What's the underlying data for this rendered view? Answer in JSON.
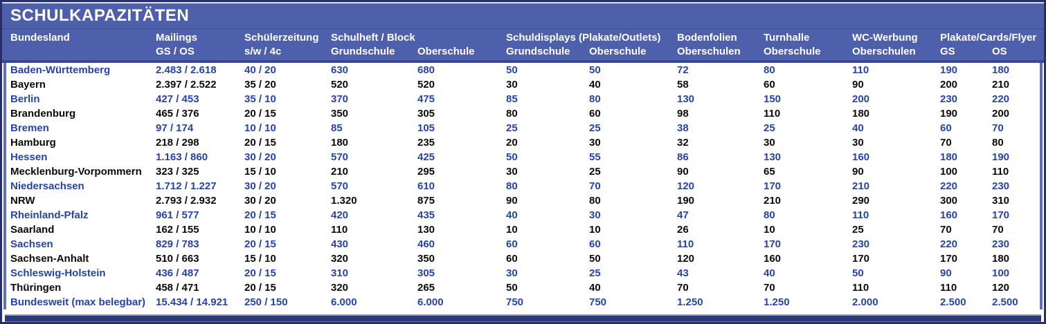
{
  "title": "SCHULKAPAZITÄTEN",
  "colors": {
    "header_background": "#4e60ab",
    "frame_border": "#272f6a",
    "body_side_border": "#6170b3",
    "blue_row_text": "#2444a8",
    "black_row_text": "#0a0a0a",
    "title_text": "#ffffff",
    "bottom_bar": "#2d3878"
  },
  "table": {
    "header": {
      "groups_row": [
        {
          "label": "Bundesland",
          "col": 1,
          "span": 1
        },
        {
          "label": "Mailings",
          "col": 2,
          "span": 1
        },
        {
          "label": "Schülerzeitung",
          "col": 3,
          "span": 1
        },
        {
          "label": "Schulheft / Block",
          "col": 4,
          "span": 2
        },
        {
          "label": "Schuldisplays (Plakate/Outlets)",
          "col": 6,
          "span": 2
        },
        {
          "label": "Bodenfolien",
          "col": 8,
          "span": 1
        },
        {
          "label": "Turnhalle",
          "col": 9,
          "span": 1
        },
        {
          "label": "WC-Werbung",
          "col": 10,
          "span": 1
        },
        {
          "label": "Plakate/Cards/Flyer",
          "col": 11,
          "span": 2
        }
      ],
      "sub_row": [
        "",
        "GS / OS",
        "s/w / 4c",
        "Grundschule",
        "Oberschule",
        "Grundschule",
        "Oberschule",
        "Oberschulen",
        "Oberschule",
        "Oberschulen",
        "GS",
        "OS"
      ]
    },
    "rows": [
      {
        "state": "Baden-Württemberg",
        "style": "blue",
        "cells": [
          "2.483 / 2.618",
          "40 / 20",
          "630",
          "680",
          "50",
          "50",
          "72",
          "80",
          "110",
          "190",
          "180"
        ]
      },
      {
        "state": "Bayern",
        "style": "black",
        "cells": [
          "2.397 / 2.522",
          "35 / 20",
          "520",
          "520",
          "30",
          "40",
          "58",
          "60",
          "90",
          "200",
          "210"
        ]
      },
      {
        "state": "Berlin",
        "style": "blue",
        "cells": [
          "427 / 453",
          "35 / 10",
          "370",
          "475",
          "85",
          "80",
          "130",
          "150",
          "200",
          "230",
          "220"
        ]
      },
      {
        "state": "Brandenburg",
        "style": "black",
        "cells": [
          "465 / 376",
          "20 / 15",
          "350",
          "305",
          "80",
          "60",
          "98",
          "110",
          "180",
          "190",
          "200"
        ]
      },
      {
        "state": "Bremen",
        "style": "blue",
        "cells": [
          "97 / 174",
          "10 / 10",
          "85",
          "105",
          "25",
          "25",
          "38",
          "25",
          "40",
          "60",
          "70"
        ]
      },
      {
        "state": "Hamburg",
        "style": "black",
        "cells": [
          "218 / 298",
          "20 / 15",
          "180",
          "235",
          "20",
          "30",
          "32",
          "30",
          "30",
          "70",
          "80"
        ]
      },
      {
        "state": "Hessen",
        "style": "blue",
        "cells": [
          "1.163 / 860",
          "30 / 20",
          "570",
          "425",
          "50",
          "55",
          "86",
          "130",
          "160",
          "180",
          "190"
        ]
      },
      {
        "state": "Mecklenburg-Vorpommern",
        "style": "black",
        "cells": [
          "323 / 325",
          "15 / 10",
          "210",
          "295",
          "30",
          "25",
          "90",
          "65",
          "90",
          "100",
          "110"
        ]
      },
      {
        "state": "Niedersachsen",
        "style": "blue",
        "cells": [
          "1.712 / 1.227",
          "30 / 20",
          "570",
          "610",
          "80",
          "70",
          "120",
          "170",
          "210",
          "220",
          "230"
        ]
      },
      {
        "state": "NRW",
        "style": "black",
        "cells": [
          "2.793 / 2.932",
          "30 / 20",
          "1.320",
          "875",
          "90",
          "80",
          "190",
          "210",
          "290",
          "300",
          "310"
        ]
      },
      {
        "state": "Rheinland-Pfalz",
        "style": "blue",
        "cells": [
          "961 / 577",
          "20 / 15",
          "420",
          "435",
          "40",
          "30",
          "47",
          "80",
          "110",
          "160",
          "170"
        ]
      },
      {
        "state": "Saarland",
        "style": "black",
        "cells": [
          "162 / 155",
          "10 / 10",
          "110",
          "130",
          "10",
          "10",
          "26",
          "10",
          "25",
          "70",
          "70"
        ]
      },
      {
        "state": "Sachsen",
        "style": "blue",
        "cells": [
          "829 / 783",
          "20 / 15",
          "430",
          "460",
          "60",
          "60",
          "110",
          "170",
          "230",
          "220",
          "230"
        ]
      },
      {
        "state": "Sachsen-Anhalt",
        "style": "black",
        "cells": [
          "510 / 663",
          "15 / 10",
          "320",
          "350",
          "60",
          "50",
          "120",
          "160",
          "170",
          "170",
          "180"
        ]
      },
      {
        "state": "Schleswig-Holstein",
        "style": "blue",
        "cells": [
          "436 / 487",
          "20 / 15",
          "310",
          "305",
          "30",
          "25",
          "43",
          "40",
          "50",
          "90",
          "100"
        ]
      },
      {
        "state": "Thüringen",
        "style": "black",
        "cells": [
          "458 / 471",
          "20 / 15",
          "320",
          "265",
          "50",
          "40",
          "70",
          "70",
          "110",
          "110",
          "120"
        ]
      },
      {
        "state": "Bundesweit (max belegbar)",
        "style": "blue",
        "cells": [
          "15.434 / 14.921",
          "250 / 150",
          "6.000",
          "6.000",
          "750",
          "750",
          "1.250",
          "1.250",
          "2.000",
          "2.500",
          "2.500"
        ]
      }
    ]
  }
}
